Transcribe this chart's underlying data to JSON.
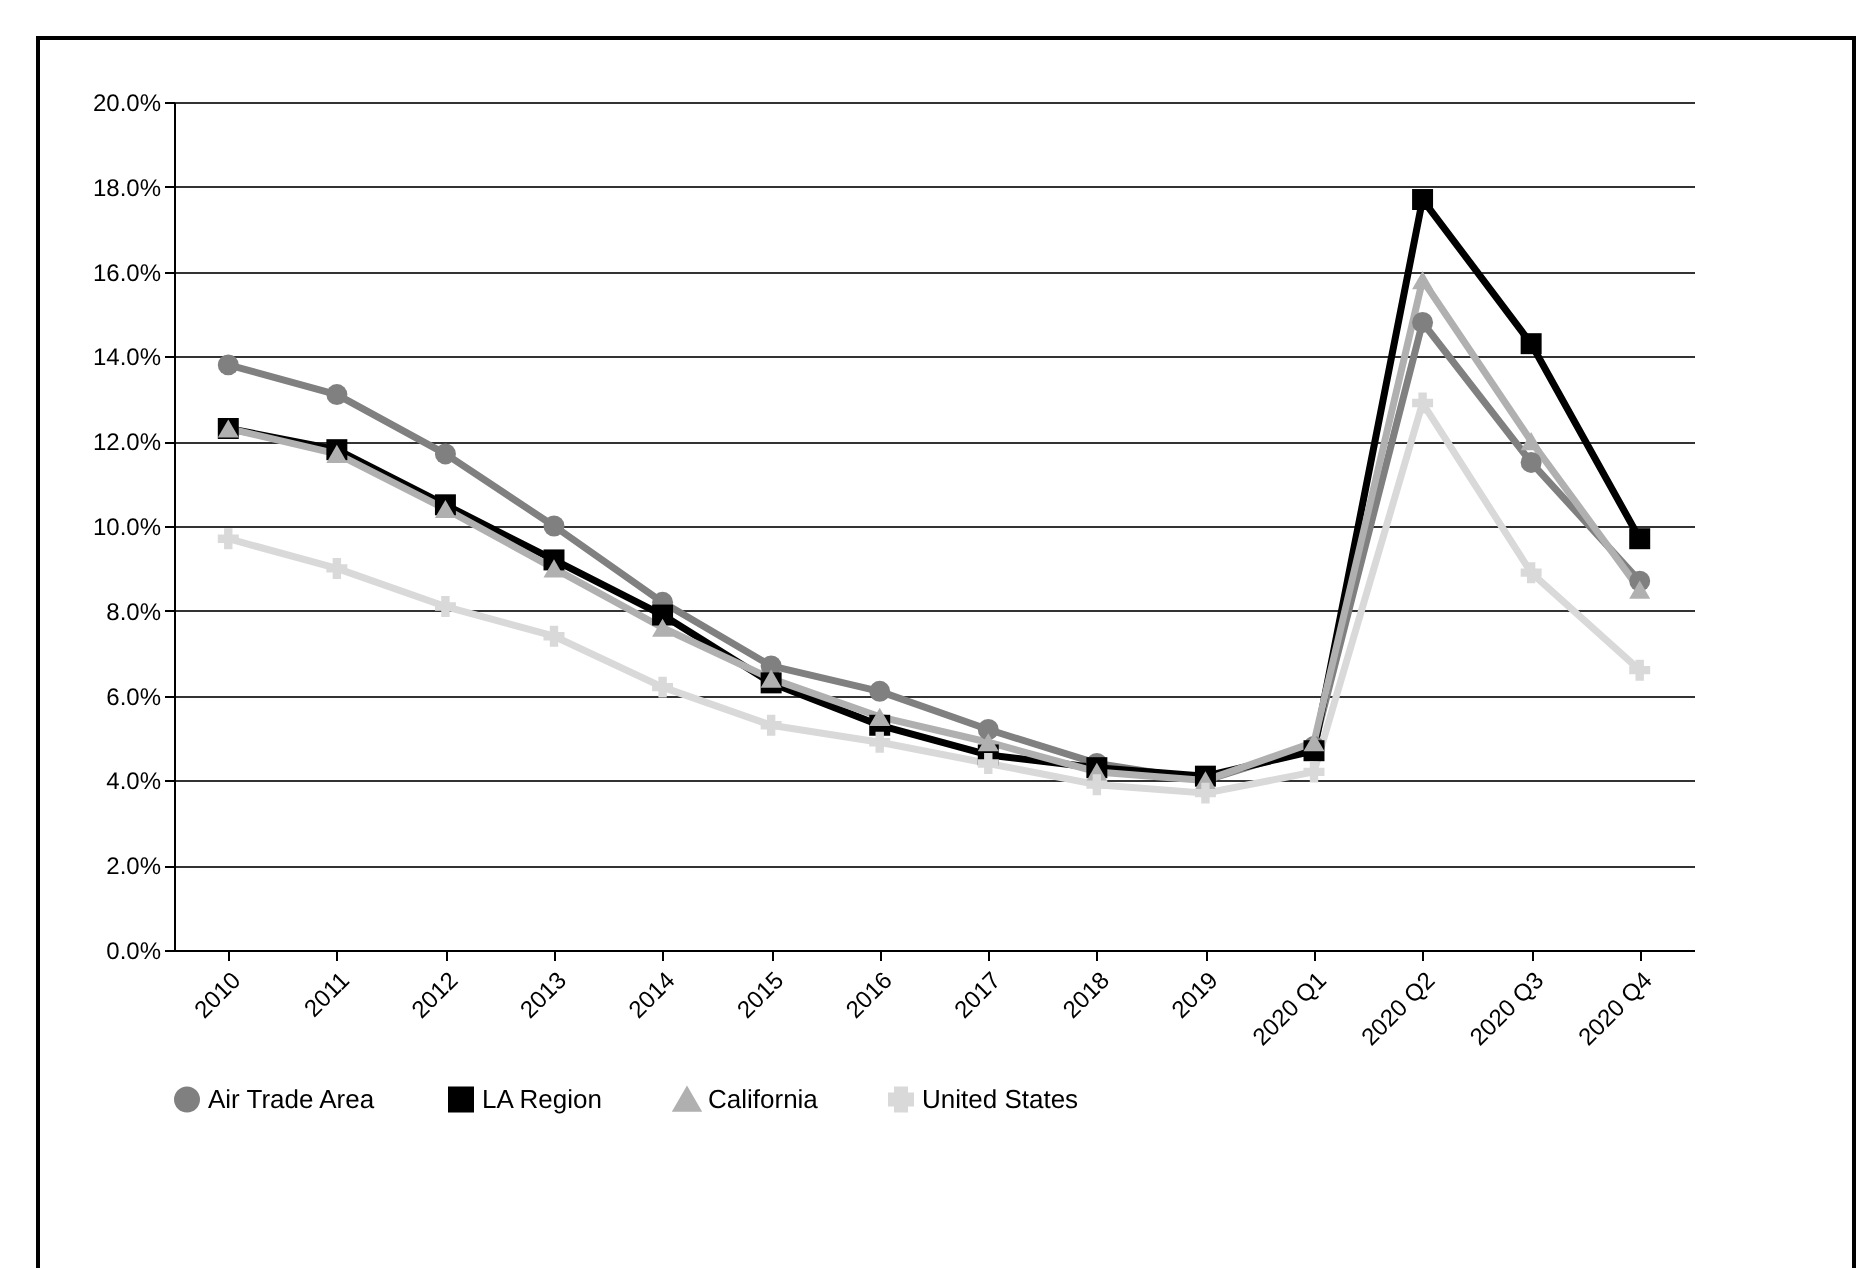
{
  "chart_data": {
    "type": "line",
    "categories": [
      "2010",
      "2011",
      "2012",
      "2013",
      "2014",
      "2015",
      "2016",
      "2017",
      "2018",
      "2019",
      "2020 Q1",
      "2020 Q2",
      "2020 Q3",
      "2020 Q4"
    ],
    "series": [
      {
        "name": "Air Trade Area",
        "color": "#808080",
        "marker": "circle",
        "values": [
          13.8,
          13.1,
          11.7,
          10.0,
          8.2,
          6.7,
          6.1,
          5.2,
          4.4,
          4.0,
          4.8,
          14.8,
          11.5,
          8.7
        ]
      },
      {
        "name": "LA Region",
        "color": "#000000",
        "marker": "square",
        "values": [
          12.3,
          11.8,
          10.5,
          9.2,
          7.9,
          6.3,
          5.3,
          4.6,
          4.3,
          4.1,
          4.7,
          17.7,
          14.3,
          9.7
        ]
      },
      {
        "name": "California",
        "color": "#b0b0b0",
        "marker": "triangle",
        "values": [
          12.3,
          11.7,
          10.4,
          9.0,
          7.6,
          6.4,
          5.5,
          4.9,
          4.2,
          4.0,
          4.9,
          15.8,
          12.0,
          8.5
        ]
      },
      {
        "name": "United States",
        "color": "#d9d9d9",
        "marker": "cross",
        "values": [
          9.7,
          9.0,
          8.1,
          7.4,
          6.2,
          5.3,
          4.9,
          4.4,
          3.9,
          3.7,
          4.2,
          12.9,
          8.9,
          6.6
        ]
      }
    ],
    "ylim": [
      0,
      20
    ],
    "yticks": [
      {
        "value": 0,
        "label": "0.0%"
      },
      {
        "value": 2,
        "label": "2.0%"
      },
      {
        "value": 4,
        "label": "4.0%"
      },
      {
        "value": 6,
        "label": "6.0%"
      },
      {
        "value": 8,
        "label": "8.0%"
      },
      {
        "value": 10,
        "label": "10.0%"
      },
      {
        "value": 12,
        "label": "12.0%"
      },
      {
        "value": 14,
        "label": "14.0%"
      },
      {
        "value": 16,
        "label": "16.0%"
      },
      {
        "value": 18,
        "label": "18.0%"
      },
      {
        "value": 20,
        "label": "20.0%"
      }
    ],
    "grid": "y",
    "legend": "bottom",
    "line_style": "solid"
  }
}
